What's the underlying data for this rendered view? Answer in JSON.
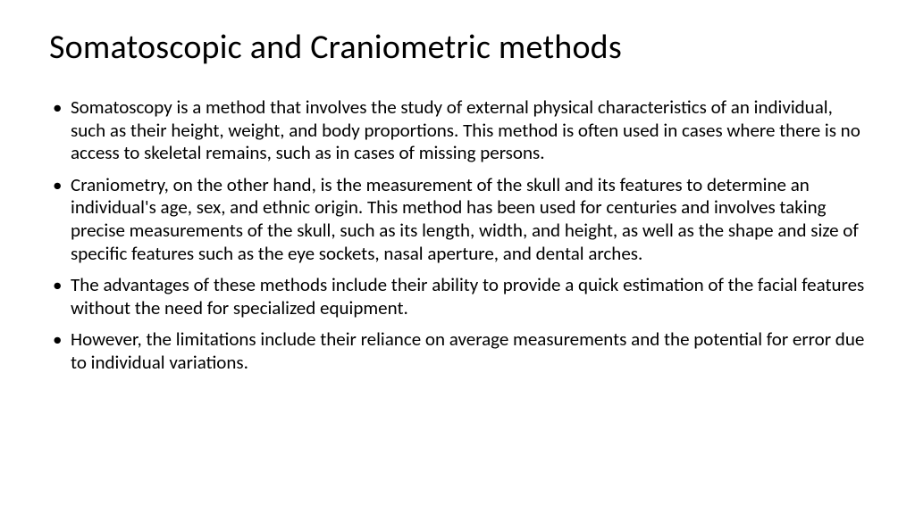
{
  "slide": {
    "title": "Somatoscopic and Craniometric methods",
    "bullets": [
      "Somatoscopy is a method that involves the study of external physical characteristics of an individual, such as their height, weight, and body proportions. This method is often used in cases where there is no access to skeletal remains, such as in cases of missing persons.",
      "Craniometry, on the other hand, is the measurement of the skull and its features to determine an individual's age, sex, and ethnic origin. This method has been used for centuries and involves taking precise measurements of the skull, such as its length, width, and height, as well as the shape and size of specific features such as the eye sockets, nasal aperture, and dental arches.",
      "The advantages of these methods include their ability to provide a quick estimation of the facial features without the need for specialized equipment.",
      "However, the limitations include their reliance on average measurements and the potential for error due to individual variations."
    ]
  },
  "style": {
    "background_color": "#ffffff",
    "text_color": "#000000",
    "title_fontsize": 38,
    "body_fontsize": 21,
    "font_family": "Calibri",
    "title_weight": 400,
    "body_weight": 400,
    "line_height": 1.22
  }
}
